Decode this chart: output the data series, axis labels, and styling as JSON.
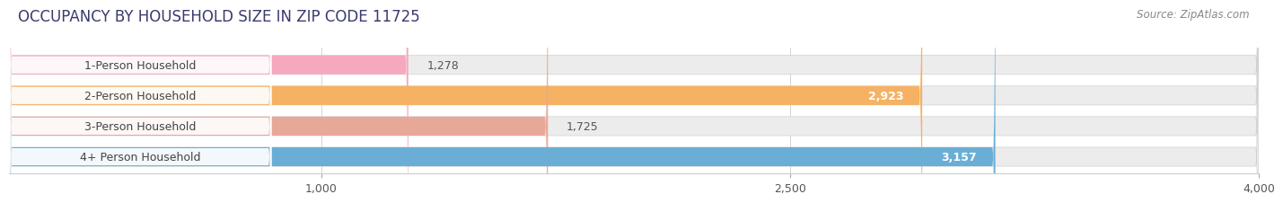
{
  "title": "OCCUPANCY BY HOUSEHOLD SIZE IN ZIP CODE 11725",
  "source": "Source: ZipAtlas.com",
  "categories": [
    "1-Person Household",
    "2-Person Household",
    "3-Person Household",
    "4+ Person Household"
  ],
  "values": [
    1278,
    2923,
    1725,
    3157
  ],
  "bar_colors": [
    "#f5a8be",
    "#f5b263",
    "#e8a898",
    "#6aaed6"
  ],
  "xlim": [
    0,
    4000
  ],
  "xticks": [
    1000,
    2500,
    4000
  ],
  "bar_height": 0.62,
  "bg_bar_color": "#ececec",
  "background_color": "#ffffff",
  "title_fontsize": 12,
  "source_fontsize": 8.5,
  "label_fontsize": 9,
  "value_fontsize": 9,
  "title_color": "#3a3a6e",
  "source_color": "#888888",
  "label_bg_color": "#ffffff",
  "value_inside_color": "#ffffff",
  "value_outside_color": "#555555",
  "inside_threshold": 1800
}
